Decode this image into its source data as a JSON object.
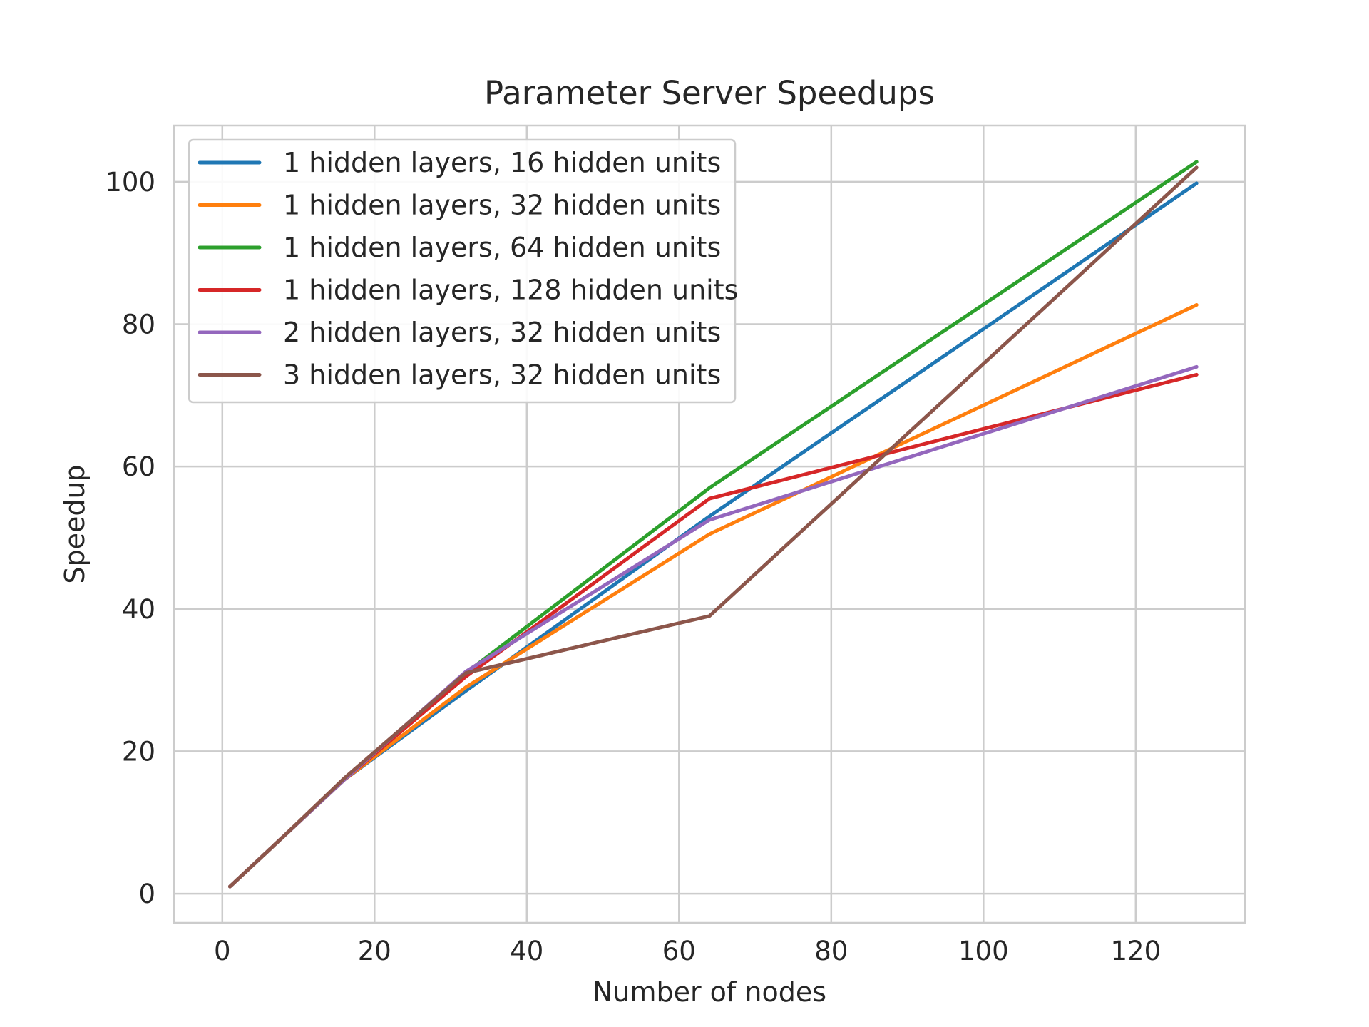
{
  "chart_data": {
    "type": "line",
    "title": "Parameter Server Speedups",
    "xlabel": "Number of nodes",
    "ylabel": "Speedup",
    "xlim": [
      -6.35,
      134.35
    ],
    "ylim": [
      -4.1,
      107.9
    ],
    "xticks": [
      0,
      20,
      40,
      60,
      80,
      100,
      120
    ],
    "yticks": [
      0,
      20,
      40,
      60,
      80,
      100
    ],
    "grid": true,
    "legend_position": "top-left",
    "x": [
      1,
      8,
      16,
      32,
      64,
      128
    ],
    "series": [
      {
        "name": "1 hidden layers, 16 hidden units",
        "color": "#1f77b4",
        "values": [
          1,
          8,
          16,
          28.5,
          53,
          99.8
        ]
      },
      {
        "name": "1 hidden layers, 32 hidden units",
        "color": "#ff7f0e",
        "values": [
          1,
          8,
          16,
          29,
          50.5,
          82.7
        ]
      },
      {
        "name": "1 hidden layers, 64 hidden units",
        "color": "#2ca02c",
        "values": [
          1,
          8,
          16,
          31,
          57,
          102.8
        ]
      },
      {
        "name": "1 hidden layers, 128 hidden units",
        "color": "#d62728",
        "values": [
          1,
          8,
          16,
          30.5,
          55.5,
          72.9
        ]
      },
      {
        "name": "2 hidden layers, 32 hidden units",
        "color": "#9467bd",
        "values": [
          1,
          8,
          16,
          31.2,
          52.5,
          74
        ]
      },
      {
        "name": "3 hidden layers, 32 hidden units",
        "color": "#8c564b",
        "values": [
          1,
          8,
          16.2,
          31,
          39,
          102
        ]
      }
    ]
  }
}
